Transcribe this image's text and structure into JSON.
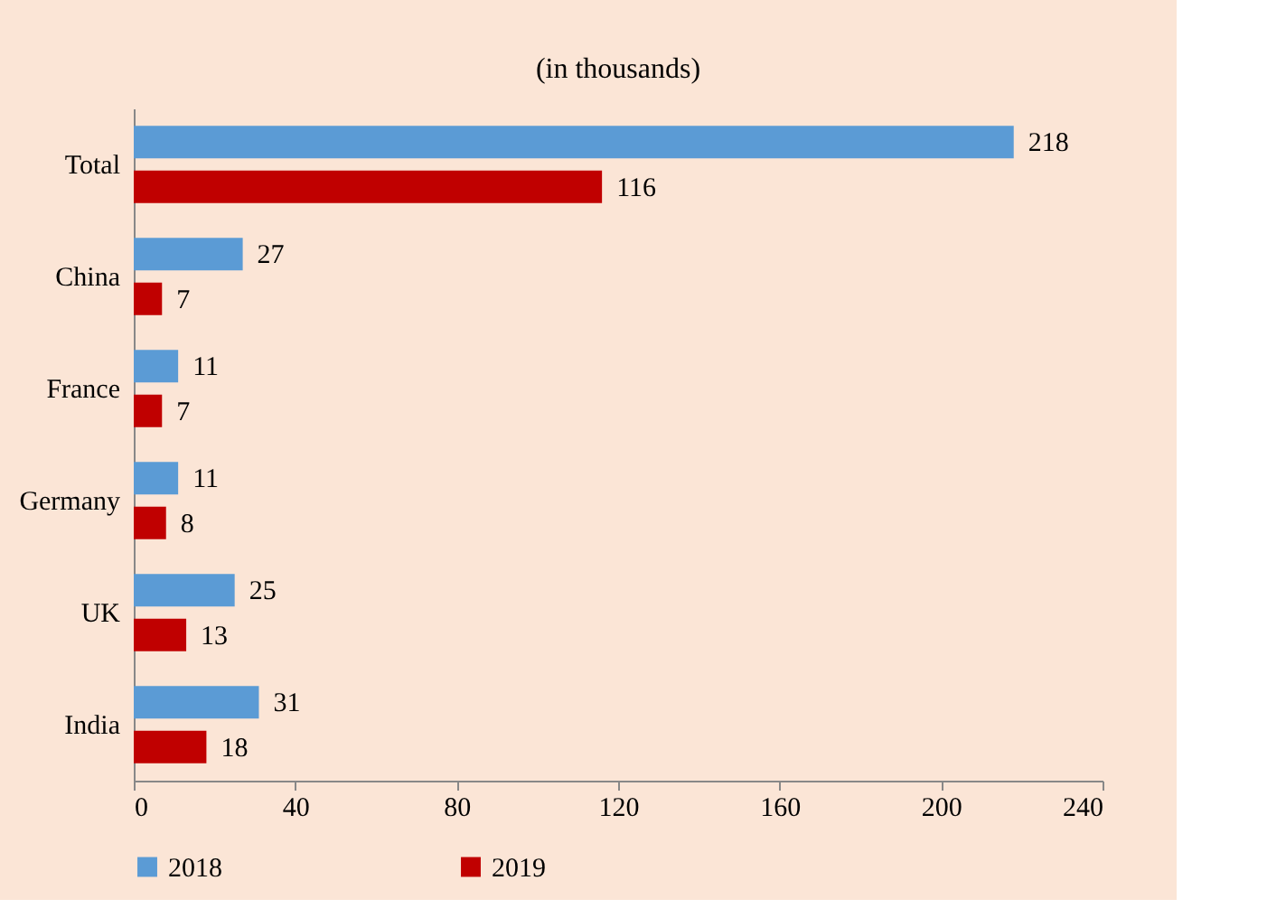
{
  "chart_data": {
    "type": "bar",
    "orientation": "horizontal",
    "title": "(in thousands)",
    "categories": [
      "Total",
      "China",
      "France",
      "Germany",
      "UK",
      "India"
    ],
    "series": [
      {
        "name": "2018",
        "color": "#5b9bd5",
        "values": [
          218,
          27,
          11,
          11,
          25,
          31
        ]
      },
      {
        "name": "2019",
        "color": "#c00000",
        "values": [
          116,
          7,
          7,
          8,
          13,
          18
        ]
      }
    ],
    "xlim": [
      0,
      240
    ],
    "xticks": [
      0,
      40,
      80,
      120,
      160,
      200,
      240
    ],
    "data_labels": true,
    "grid": false,
    "legend": "bottom"
  }
}
